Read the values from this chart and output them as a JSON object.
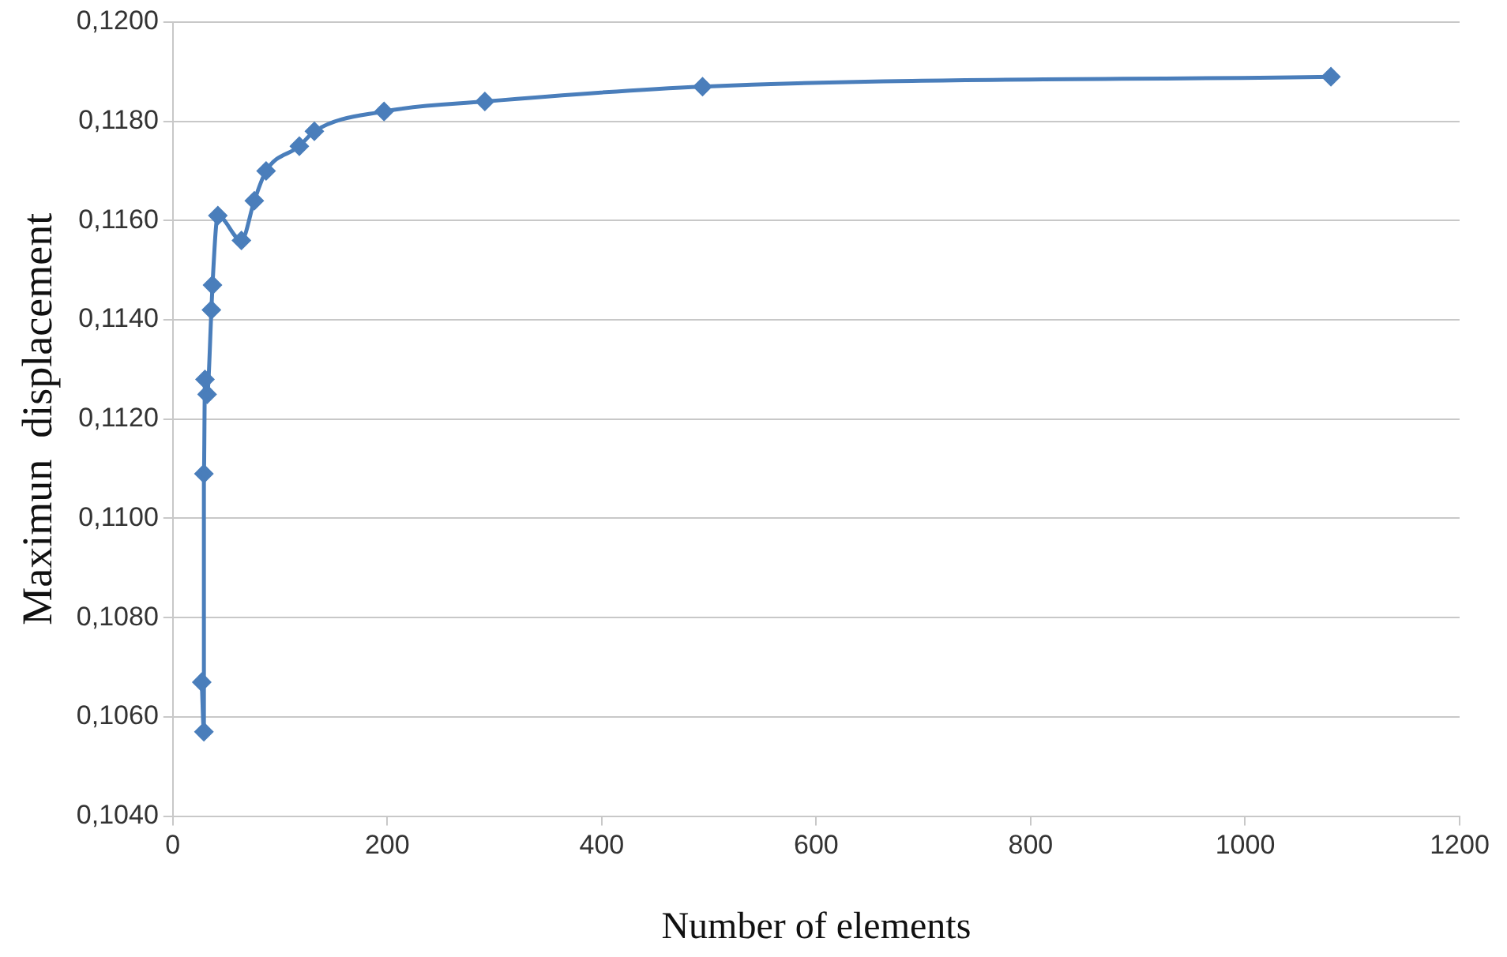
{
  "chart_data": {
    "type": "line",
    "xlabel": "Number of elements",
    "ylabel": "Maximun  displacement",
    "series": [
      {
        "color": "#4a7ebb",
        "x": [
          27,
          29,
          29,
          30,
          32,
          36,
          37,
          42,
          64,
          76,
          87,
          118,
          132,
          197,
          291,
          494,
          1080
        ],
        "values": [
          0.1067,
          0.1057,
          0.1109,
          0.1128,
          0.1125,
          0.1142,
          0.1147,
          0.1161,
          0.1156,
          0.1164,
          0.117,
          0.1175,
          0.1178,
          0.1182,
          0.1184,
          0.1187,
          0.1189
        ]
      }
    ],
    "xlim": [
      0,
      1200
    ],
    "xticks": [
      0,
      200,
      400,
      600,
      800,
      1000,
      1200
    ],
    "ylim": [
      0.104,
      0.12
    ],
    "yticks": [
      {
        "value": 0.104,
        "label": "0,1040"
      },
      {
        "value": 0.106,
        "label": "0,1060"
      },
      {
        "value": 0.108,
        "label": "0,1080"
      },
      {
        "value": 0.11,
        "label": "0,1100"
      },
      {
        "value": 0.112,
        "label": "0,1120"
      },
      {
        "value": 0.114,
        "label": "0,1140"
      },
      {
        "value": 0.116,
        "label": "0,1160"
      },
      {
        "value": 0.118,
        "label": "0,1180"
      },
      {
        "value": 0.12,
        "label": "0,1200"
      }
    ],
    "grid": "y",
    "marker": "diamond",
    "line_style": "solid",
    "legend": false
  }
}
